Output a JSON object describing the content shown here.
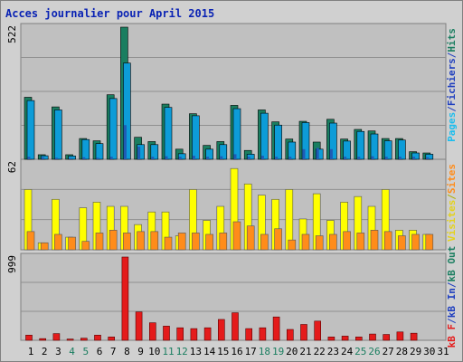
{
  "title": "Acces journalier pour April 2015",
  "colors": {
    "pages": "#1bbdee",
    "pages_dark": "#1f5bb5",
    "fichiers": "#0d9cd8",
    "hits": "#1a7e60",
    "visites": "#ffff00",
    "sites": "#ff8c1a",
    "kb": "#e41b1b",
    "weekend_label": "#1a7e60",
    "weekday_label": "#000000",
    "label_pages": "#1bbdee",
    "label_fichiers": "#1f3fbf",
    "label_hits": "#1a7e60",
    "label_visites": "#e4d21a",
    "label_sites": "#ff8c1a",
    "label_kbout": "#1a7e60",
    "label_kbin": "#1f3fbf",
    "label_kbf": "#e41b1b"
  },
  "chart_data": [
    {
      "type": "bar",
      "name": "panel-hits",
      "ymax_label": "522",
      "ylim": [
        0,
        522
      ],
      "legend": [
        "Pages",
        "/",
        "Fichiers",
        "/",
        "Hits"
      ],
      "x": [
        1,
        2,
        3,
        4,
        5,
        6,
        7,
        8,
        9,
        10,
        11,
        12,
        13,
        14,
        15,
        16,
        17,
        18,
        19,
        20,
        21,
        22,
        23,
        24,
        25,
        26,
        27,
        28,
        29,
        30,
        31
      ],
      "series": [
        {
          "name": "Hits",
          "values": [
            245,
            18,
            207,
            18,
            82,
            73,
            255,
            522,
            87,
            70,
            218,
            40,
            180,
            55,
            70,
            213,
            35,
            195,
            148,
            80,
            150,
            68,
            158,
            80,
            118,
            112,
            82,
            82,
            30,
            25,
            0
          ]
        },
        {
          "name": "Fichiers",
          "values": [
            232,
            14,
            195,
            13,
            78,
            62,
            240,
            380,
            58,
            58,
            205,
            22,
            172,
            40,
            58,
            200,
            20,
            182,
            135,
            68,
            145,
            40,
            143,
            72,
            110,
            100,
            73,
            76,
            25,
            20,
            0
          ]
        },
        {
          "name": "Pages",
          "values": [
            10,
            8,
            6,
            5,
            8,
            6,
            10,
            135,
            50,
            10,
            12,
            10,
            14,
            10,
            12,
            20,
            10,
            14,
            10,
            10,
            40,
            45,
            40,
            10,
            10,
            12,
            10,
            10,
            10,
            8,
            0
          ]
        }
      ]
    },
    {
      "type": "bar",
      "name": "panel-visits",
      "ymax_label": "62",
      "ylim": [
        0,
        62
      ],
      "legend": [
        "Visites",
        "/",
        "Sites"
      ],
      "x": [
        1,
        2,
        3,
        4,
        5,
        6,
        7,
        8,
        9,
        10,
        11,
        12,
        13,
        14,
        15,
        16,
        17,
        18,
        19,
        20,
        21,
        22,
        23,
        24,
        25,
        26,
        27,
        28,
        29,
        30,
        31
      ],
      "series": [
        {
          "name": "Visites",
          "values": [
            43,
            5,
            36,
            9,
            30,
            34,
            31,
            31,
            18,
            27,
            27,
            10,
            43,
            21,
            31,
            58,
            47,
            39,
            36,
            43,
            22,
            40,
            21,
            34,
            38,
            31,
            43,
            14,
            14,
            11,
            0
          ]
        },
        {
          "name": "Sites",
          "values": [
            13,
            5,
            11,
            9,
            6,
            12,
            14,
            12,
            13,
            13,
            9,
            12,
            12,
            11,
            12,
            20,
            17,
            11,
            15,
            7,
            11,
            10,
            11,
            13,
            12,
            14,
            13,
            10,
            11,
            11,
            0
          ]
        }
      ]
    },
    {
      "type": "bar",
      "name": "panel-kb",
      "ymax_label": "999",
      "ylim": [
        0,
        999
      ],
      "legend": [
        "kB F",
        "/",
        "kB In",
        "/",
        "kB Out"
      ],
      "x": [
        1,
        2,
        3,
        4,
        5,
        6,
        7,
        8,
        9,
        10,
        11,
        12,
        13,
        14,
        15,
        16,
        17,
        18,
        19,
        20,
        21,
        22,
        23,
        24,
        25,
        26,
        27,
        28,
        29,
        30,
        31
      ],
      "series": [
        {
          "name": "kB F",
          "values": [
            62,
            20,
            80,
            15,
            25,
            62,
            40,
            999,
            340,
            210,
            170,
            150,
            140,
            150,
            250,
            330,
            140,
            150,
            280,
            130,
            190,
            230,
            40,
            50,
            40,
            75,
            70,
            100,
            85,
            0,
            0
          ]
        }
      ]
    }
  ],
  "x_labels": [
    "1",
    "2",
    "3",
    "4",
    "5",
    "6",
    "7",
    "8",
    "9",
    "10",
    "11",
    "12",
    "13",
    "14",
    "15",
    "16",
    "17",
    "18",
    "19",
    "20",
    "21",
    "22",
    "23",
    "24",
    "25",
    "26",
    "27",
    "28",
    "29",
    "30",
    "31"
  ],
  "weekend_days": [
    4,
    5,
    11,
    12,
    18,
    19,
    25,
    26
  ]
}
